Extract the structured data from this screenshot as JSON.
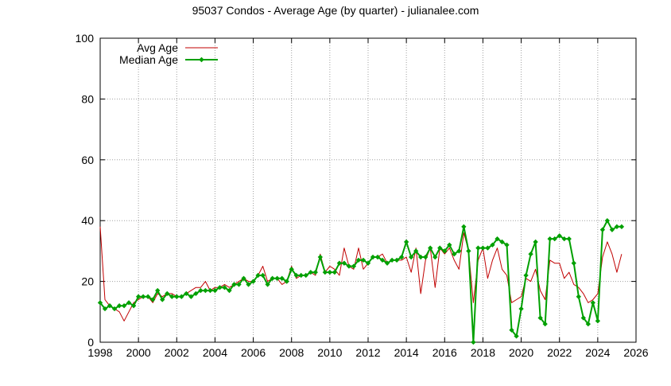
{
  "chart_data": {
    "type": "line",
    "title": "95037 Condos - Average Age (by quarter) - julianalee.com",
    "xlabel": "",
    "ylabel": "",
    "xlim": [
      1998,
      2026
    ],
    "ylim": [
      0,
      100
    ],
    "x_ticks": [
      1998,
      2000,
      2002,
      2004,
      2006,
      2008,
      2010,
      2012,
      2014,
      2016,
      2018,
      2020,
      2022,
      2024,
      2026
    ],
    "y_ticks": [
      0,
      20,
      40,
      60,
      80,
      100
    ],
    "grid": true,
    "legend_position": "top-left",
    "series": [
      {
        "name": "Avg Age",
        "color": "#c00000",
        "marker": "none",
        "points": [
          [
            1998.0,
            38
          ],
          [
            1998.25,
            14
          ],
          [
            1998.5,
            12
          ],
          [
            1998.75,
            11
          ],
          [
            1999.0,
            10
          ],
          [
            1999.25,
            7
          ],
          [
            1999.5,
            10
          ],
          [
            1999.75,
            13
          ],
          [
            2000.0,
            14
          ],
          [
            2000.25,
            15
          ],
          [
            2000.5,
            15
          ],
          [
            2000.75,
            13
          ],
          [
            2001.0,
            16
          ],
          [
            2001.25,
            15
          ],
          [
            2001.5,
            16
          ],
          [
            2001.75,
            16
          ],
          [
            2002.0,
            15
          ],
          [
            2002.25,
            15
          ],
          [
            2002.5,
            16
          ],
          [
            2002.75,
            17
          ],
          [
            2003.0,
            18
          ],
          [
            2003.25,
            18
          ],
          [
            2003.5,
            20
          ],
          [
            2003.75,
            17
          ],
          [
            2004.0,
            18
          ],
          [
            2004.25,
            18
          ],
          [
            2004.5,
            19
          ],
          [
            2004.75,
            18
          ],
          [
            2005.0,
            19
          ],
          [
            2005.25,
            20
          ],
          [
            2005.5,
            21
          ],
          [
            2005.75,
            20
          ],
          [
            2006.0,
            20
          ],
          [
            2006.25,
            22
          ],
          [
            2006.5,
            25
          ],
          [
            2006.75,
            20
          ],
          [
            2007.0,
            21
          ],
          [
            2007.25,
            21
          ],
          [
            2007.5,
            19
          ],
          [
            2007.75,
            20
          ],
          [
            2008.0,
            25
          ],
          [
            2008.25,
            21
          ],
          [
            2008.5,
            22
          ],
          [
            2008.75,
            22
          ],
          [
            2009.0,
            23
          ],
          [
            2009.25,
            22
          ],
          [
            2009.5,
            29
          ],
          [
            2009.75,
            23
          ],
          [
            2010.0,
            25
          ],
          [
            2010.25,
            24
          ],
          [
            2010.5,
            22
          ],
          [
            2010.75,
            31
          ],
          [
            2011.0,
            25
          ],
          [
            2011.25,
            24
          ],
          [
            2011.5,
            31
          ],
          [
            2011.75,
            24
          ],
          [
            2012.0,
            26
          ],
          [
            2012.25,
            28
          ],
          [
            2012.5,
            28
          ],
          [
            2012.75,
            29
          ],
          [
            2013.0,
            26
          ],
          [
            2013.25,
            27
          ],
          [
            2013.5,
            27
          ],
          [
            2013.75,
            27
          ],
          [
            2014.0,
            28
          ],
          [
            2014.25,
            23
          ],
          [
            2014.5,
            31
          ],
          [
            2014.75,
            16
          ],
          [
            2015.0,
            27
          ],
          [
            2015.25,
            31
          ],
          [
            2015.5,
            18
          ],
          [
            2015.75,
            31
          ],
          [
            2016.0,
            29
          ],
          [
            2016.25,
            31
          ],
          [
            2016.5,
            27
          ],
          [
            2016.75,
            24
          ],
          [
            2017.0,
            36
          ],
          [
            2017.25,
            30
          ],
          [
            2017.5,
            13
          ],
          [
            2017.75,
            27
          ],
          [
            2018.0,
            31
          ],
          [
            2018.25,
            21
          ],
          [
            2018.5,
            27
          ],
          [
            2018.75,
            31
          ],
          [
            2019.0,
            24
          ],
          [
            2019.25,
            22
          ],
          [
            2019.5,
            13
          ],
          [
            2019.75,
            14
          ],
          [
            2020.0,
            15
          ],
          [
            2020.25,
            21
          ],
          [
            2020.5,
            20
          ],
          [
            2020.75,
            24
          ],
          [
            2021.0,
            17
          ],
          [
            2021.25,
            14
          ],
          [
            2021.5,
            27
          ],
          [
            2021.75,
            26
          ],
          [
            2022.0,
            26
          ],
          [
            2022.25,
            21
          ],
          [
            2022.5,
            23
          ],
          [
            2022.75,
            19
          ],
          [
            2023.0,
            18
          ],
          [
            2023.25,
            16
          ],
          [
            2023.5,
            13
          ],
          [
            2023.75,
            14
          ],
          [
            2024.0,
            16
          ],
          [
            2024.25,
            28
          ],
          [
            2024.5,
            33
          ],
          [
            2024.75,
            29
          ],
          [
            2025.0,
            23
          ],
          [
            2025.25,
            29
          ]
        ]
      },
      {
        "name": "Median Age",
        "color": "#00a000",
        "marker": "diamond",
        "points": [
          [
            1998.0,
            13
          ],
          [
            1998.25,
            11
          ],
          [
            1998.5,
            12
          ],
          [
            1998.75,
            11
          ],
          [
            1999.0,
            12
          ],
          [
            1999.25,
            12
          ],
          [
            1999.5,
            13
          ],
          [
            1999.75,
            12
          ],
          [
            2000.0,
            15
          ],
          [
            2000.25,
            15
          ],
          [
            2000.5,
            15
          ],
          [
            2000.75,
            14
          ],
          [
            2001.0,
            17
          ],
          [
            2001.25,
            14
          ],
          [
            2001.5,
            16
          ],
          [
            2001.75,
            15
          ],
          [
            2002.0,
            15
          ],
          [
            2002.25,
            15
          ],
          [
            2002.5,
            16
          ],
          [
            2002.75,
            15
          ],
          [
            2003.0,
            16
          ],
          [
            2003.25,
            17
          ],
          [
            2003.5,
            17
          ],
          [
            2003.75,
            17
          ],
          [
            2004.0,
            17
          ],
          [
            2004.25,
            18
          ],
          [
            2004.5,
            18
          ],
          [
            2004.75,
            17
          ],
          [
            2005.0,
            19
          ],
          [
            2005.25,
            19
          ],
          [
            2005.5,
            21
          ],
          [
            2005.75,
            19
          ],
          [
            2006.0,
            20
          ],
          [
            2006.25,
            22
          ],
          [
            2006.5,
            22
          ],
          [
            2006.75,
            19
          ],
          [
            2007.0,
            21
          ],
          [
            2007.25,
            21
          ],
          [
            2007.5,
            21
          ],
          [
            2007.75,
            20
          ],
          [
            2008.0,
            24
          ],
          [
            2008.25,
            22
          ],
          [
            2008.5,
            22
          ],
          [
            2008.75,
            22
          ],
          [
            2009.0,
            23
          ],
          [
            2009.25,
            23
          ],
          [
            2009.5,
            28
          ],
          [
            2009.75,
            23
          ],
          [
            2010.0,
            23
          ],
          [
            2010.25,
            23
          ],
          [
            2010.5,
            26
          ],
          [
            2010.75,
            26
          ],
          [
            2011.0,
            25
          ],
          [
            2011.25,
            25
          ],
          [
            2011.5,
            27
          ],
          [
            2011.75,
            27
          ],
          [
            2012.0,
            26
          ],
          [
            2012.25,
            28
          ],
          [
            2012.5,
            28
          ],
          [
            2012.75,
            27
          ],
          [
            2013.0,
            26
          ],
          [
            2013.25,
            27
          ],
          [
            2013.5,
            27
          ],
          [
            2013.75,
            28
          ],
          [
            2014.0,
            33
          ],
          [
            2014.25,
            28
          ],
          [
            2014.5,
            30
          ],
          [
            2014.75,
            28
          ],
          [
            2015.0,
            28
          ],
          [
            2015.25,
            31
          ],
          [
            2015.5,
            28
          ],
          [
            2015.75,
            31
          ],
          [
            2016.0,
            30
          ],
          [
            2016.25,
            32
          ],
          [
            2016.5,
            29
          ],
          [
            2016.75,
            30
          ],
          [
            2017.0,
            38
          ],
          [
            2017.25,
            30
          ],
          [
            2017.5,
            0
          ],
          [
            2017.75,
            31
          ],
          [
            2018.0,
            31
          ],
          [
            2018.25,
            31
          ],
          [
            2018.5,
            32
          ],
          [
            2018.75,
            34
          ],
          [
            2019.0,
            33
          ],
          [
            2019.25,
            32
          ],
          [
            2019.5,
            4
          ],
          [
            2019.75,
            2
          ],
          [
            2020.0,
            11
          ],
          [
            2020.25,
            22
          ],
          [
            2020.5,
            29
          ],
          [
            2020.75,
            33
          ],
          [
            2021.0,
            8
          ],
          [
            2021.25,
            6
          ],
          [
            2021.5,
            34
          ],
          [
            2021.75,
            34
          ],
          [
            2022.0,
            35
          ],
          [
            2022.25,
            34
          ],
          [
            2022.5,
            34
          ],
          [
            2022.75,
            26
          ],
          [
            2023.0,
            15
          ],
          [
            2023.25,
            8
          ],
          [
            2023.5,
            6
          ],
          [
            2023.75,
            13
          ],
          [
            2024.0,
            7
          ],
          [
            2024.25,
            37
          ],
          [
            2024.5,
            40
          ],
          [
            2024.75,
            37
          ],
          [
            2025.0,
            38
          ],
          [
            2025.25,
            38
          ]
        ]
      }
    ]
  }
}
